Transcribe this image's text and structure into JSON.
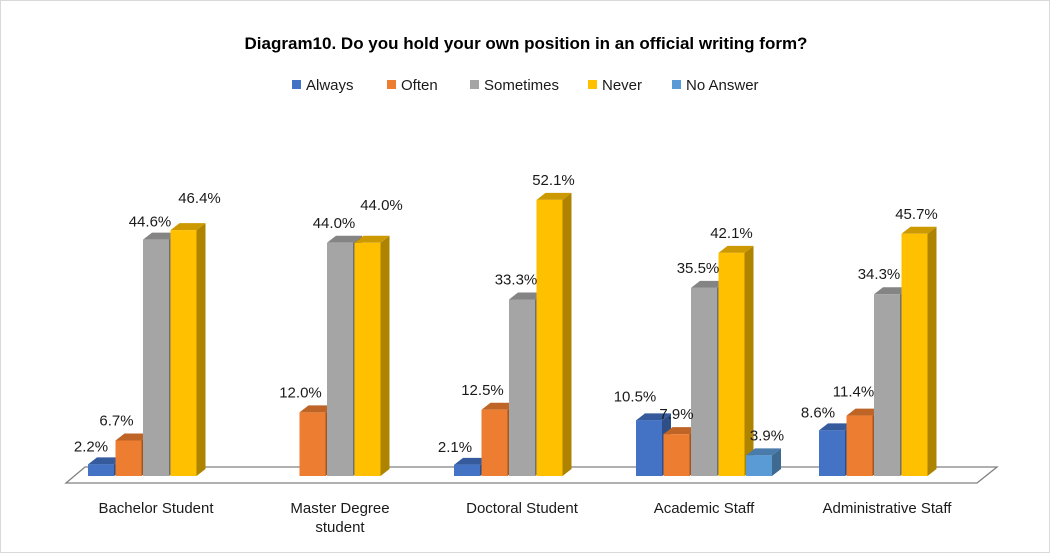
{
  "chart_data": {
    "type": "bar",
    "title": "Diagram10. Do you hold your own position in an official writing form?",
    "categories": [
      [
        "Bachelor Student"
      ],
      [
        "Master Degree",
        "student"
      ],
      [
        "Doctoral Student"
      ],
      [
        "Academic Staff"
      ],
      [
        "Administrative Staff"
      ]
    ],
    "series": [
      {
        "name": "Always",
        "color": "#4472c4",
        "values": [
          2.2,
          null,
          2.1,
          10.5,
          8.6
        ],
        "labels": [
          "2.2%",
          "",
          "2.1%",
          "10.5%",
          "8.6%"
        ]
      },
      {
        "name": "Often",
        "color": "#ed7d31",
        "values": [
          6.7,
          12.0,
          12.5,
          7.9,
          11.4
        ],
        "labels": [
          "6.7%",
          "12.0%",
          "12.5%",
          "7.9%",
          "11.4%"
        ]
      },
      {
        "name": "Sometimes",
        "color": "#a5a5a5",
        "values": [
          44.6,
          44.0,
          33.3,
          35.5,
          34.3
        ],
        "labels": [
          "44.6%",
          "44.0%",
          "33.3%",
          "35.5%",
          "34.3%"
        ]
      },
      {
        "name": "Never",
        "color": "#ffc000",
        "values": [
          46.4,
          44.0,
          52.1,
          42.1,
          45.7
        ],
        "labels": [
          "46.4%",
          "44.0%",
          "52.1%",
          "42.1%",
          "45.7%"
        ]
      },
      {
        "name": "No Answer",
        "color": "#5b9bd5",
        "values": [
          null,
          null,
          null,
          3.9,
          null
        ],
        "labels": [
          "",
          "",
          "",
          "3.9%",
          ""
        ]
      }
    ],
    "ylim": [
      0,
      60
    ],
    "legend": "top",
    "grid": false,
    "style": "3d-clustered-column"
  }
}
